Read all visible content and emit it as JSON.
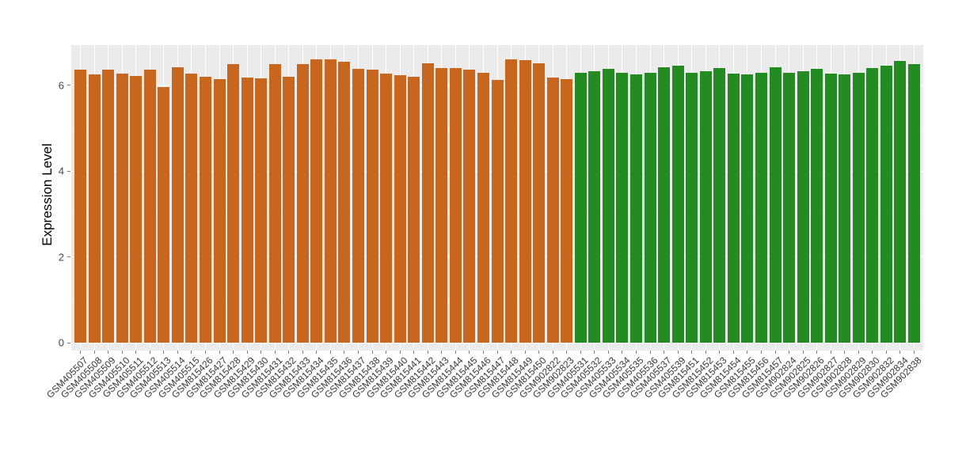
{
  "figure": {
    "background": "#FFFFFF"
  },
  "chart_data": {
    "type": "bar",
    "title": "",
    "xlabel": "",
    "ylabel": "Expression Level",
    "ylim": [
      0,
      6.94
    ],
    "yticks_major": [
      0,
      2,
      4,
      6
    ],
    "yticks_minor": [
      1,
      3,
      5
    ],
    "legend_position": "none",
    "panel_background": "#EBEBEB",
    "grid_color": "#FFFFFF",
    "group_colors": [
      "#C9661D",
      "#248B22"
    ],
    "bars": [
      {
        "label": "GSM405507",
        "value": 6.37,
        "group": 0
      },
      {
        "label": "GSM405508",
        "value": 6.26,
        "group": 0
      },
      {
        "label": "GSM405509",
        "value": 6.36,
        "group": 0
      },
      {
        "label": "GSM405510",
        "value": 6.28,
        "group": 0
      },
      {
        "label": "GSM405511",
        "value": 6.23,
        "group": 0
      },
      {
        "label": "GSM405512",
        "value": 6.37,
        "group": 0
      },
      {
        "label": "GSM405513",
        "value": 5.97,
        "group": 0
      },
      {
        "label": "GSM405514",
        "value": 6.42,
        "group": 0
      },
      {
        "label": "GSM405515",
        "value": 6.27,
        "group": 0
      },
      {
        "label": "GSM815426",
        "value": 6.2,
        "group": 0
      },
      {
        "label": "GSM815427",
        "value": 6.15,
        "group": 0
      },
      {
        "label": "GSM815428",
        "value": 6.5,
        "group": 0
      },
      {
        "label": "GSM815429",
        "value": 6.19,
        "group": 0
      },
      {
        "label": "GSM815430",
        "value": 6.17,
        "group": 0
      },
      {
        "label": "GSM815431",
        "value": 6.5,
        "group": 0
      },
      {
        "label": "GSM815432",
        "value": 6.2,
        "group": 0
      },
      {
        "label": "GSM815433",
        "value": 6.49,
        "group": 0
      },
      {
        "label": "GSM815434",
        "value": 6.61,
        "group": 0
      },
      {
        "label": "GSM815435",
        "value": 6.61,
        "group": 0
      },
      {
        "label": "GSM815436",
        "value": 6.55,
        "group": 0
      },
      {
        "label": "GSM815437",
        "value": 6.39,
        "group": 0
      },
      {
        "label": "GSM815438",
        "value": 6.36,
        "group": 0
      },
      {
        "label": "GSM815439",
        "value": 6.28,
        "group": 0
      },
      {
        "label": "GSM815440",
        "value": 6.24,
        "group": 0
      },
      {
        "label": "GSM815441",
        "value": 6.21,
        "group": 0
      },
      {
        "label": "GSM815442",
        "value": 6.52,
        "group": 0
      },
      {
        "label": "GSM815443",
        "value": 6.41,
        "group": 0
      },
      {
        "label": "GSM815444",
        "value": 6.41,
        "group": 0
      },
      {
        "label": "GSM815445",
        "value": 6.36,
        "group": 0
      },
      {
        "label": "GSM815446",
        "value": 6.3,
        "group": 0
      },
      {
        "label": "GSM815447",
        "value": 6.13,
        "group": 0
      },
      {
        "label": "GSM815448",
        "value": 6.6,
        "group": 0
      },
      {
        "label": "GSM815449",
        "value": 6.59,
        "group": 0
      },
      {
        "label": "GSM815450",
        "value": 6.52,
        "group": 0
      },
      {
        "label": "GSM902822",
        "value": 6.19,
        "group": 0
      },
      {
        "label": "GSM902823",
        "value": 6.15,
        "group": 0
      },
      {
        "label": "GSM405531",
        "value": 6.3,
        "group": 1
      },
      {
        "label": "GSM405532",
        "value": 6.33,
        "group": 1
      },
      {
        "label": "GSM405533",
        "value": 6.39,
        "group": 1
      },
      {
        "label": "GSM405534",
        "value": 6.29,
        "group": 1
      },
      {
        "label": "GSM405535",
        "value": 6.25,
        "group": 1
      },
      {
        "label": "GSM405536",
        "value": 6.3,
        "group": 1
      },
      {
        "label": "GSM405537",
        "value": 6.42,
        "group": 1
      },
      {
        "label": "GSM405539",
        "value": 6.47,
        "group": 1
      },
      {
        "label": "GSM815451",
        "value": 6.3,
        "group": 1
      },
      {
        "label": "GSM815452",
        "value": 6.34,
        "group": 1
      },
      {
        "label": "GSM815453",
        "value": 6.4,
        "group": 1
      },
      {
        "label": "GSM815454",
        "value": 6.28,
        "group": 1
      },
      {
        "label": "GSM815455",
        "value": 6.25,
        "group": 1
      },
      {
        "label": "GSM815456",
        "value": 6.29,
        "group": 1
      },
      {
        "label": "GSM815457",
        "value": 6.42,
        "group": 1
      },
      {
        "label": "GSM902824",
        "value": 6.3,
        "group": 1
      },
      {
        "label": "GSM902825",
        "value": 6.34,
        "group": 1
      },
      {
        "label": "GSM902826",
        "value": 6.39,
        "group": 1
      },
      {
        "label": "GSM902827",
        "value": 6.28,
        "group": 1
      },
      {
        "label": "GSM902828",
        "value": 6.25,
        "group": 1
      },
      {
        "label": "GSM902829",
        "value": 6.29,
        "group": 1
      },
      {
        "label": "GSM902830",
        "value": 6.41,
        "group": 1
      },
      {
        "label": "GSM902832",
        "value": 6.46,
        "group": 1
      },
      {
        "label": "GSM902834",
        "value": 6.57,
        "group": 1
      },
      {
        "label": "GSM902838",
        "value": 6.49,
        "group": 1
      }
    ]
  }
}
